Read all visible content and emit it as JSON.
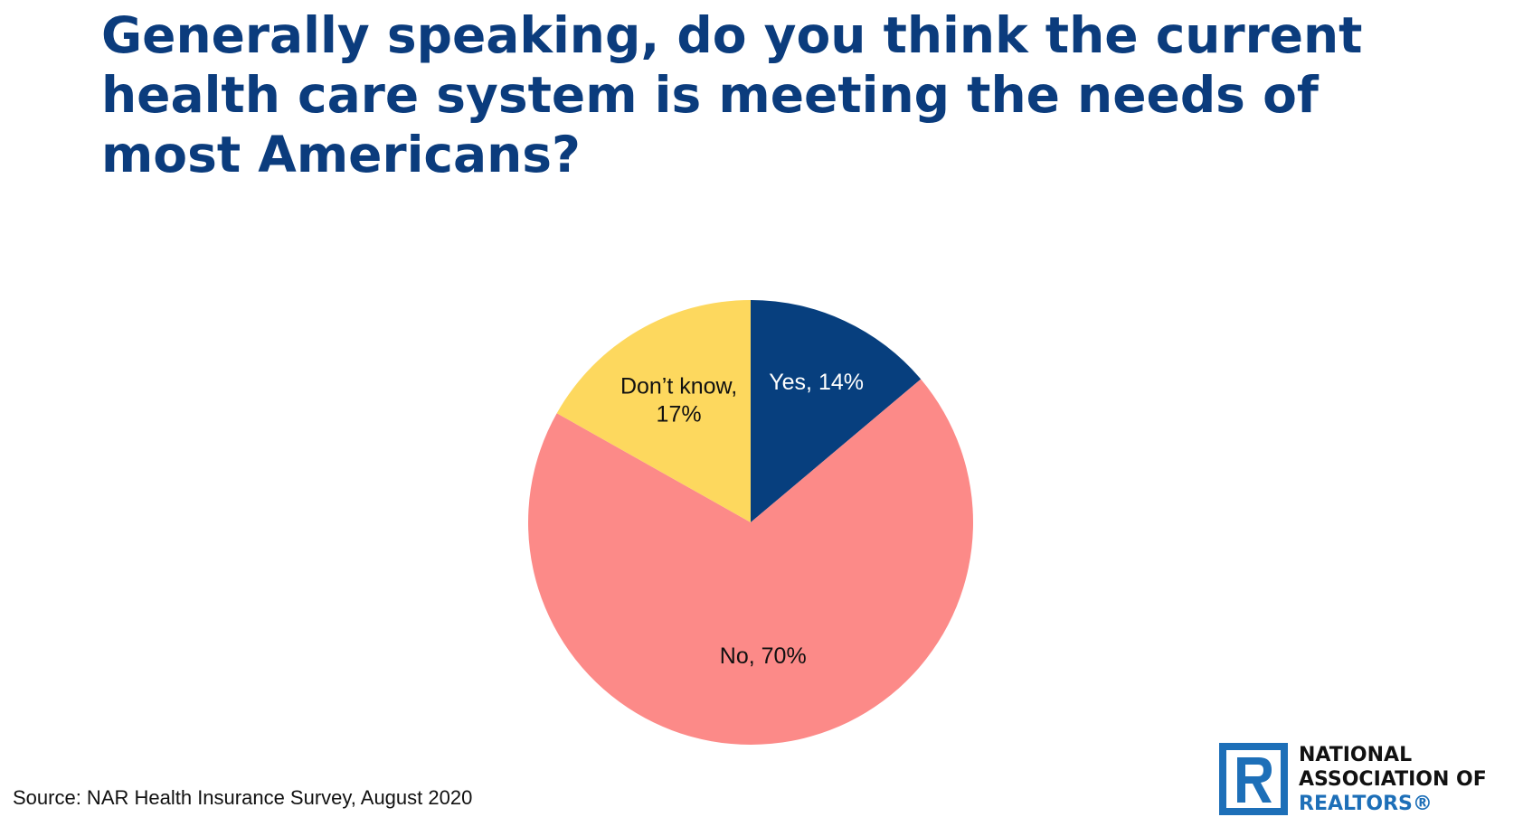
{
  "title": "Generally speaking, do you think the current health care system is meeting the needs of most Americans?",
  "source": "Source: NAR Health Insurance Survey, August 2020",
  "logo": {
    "line1": "NATIONAL",
    "line2": "ASSOCIATION OF",
    "line3": "REALTORS®"
  },
  "colors": {
    "title": "#0b3c7d",
    "yes": "#073f7e",
    "no": "#fc8a88",
    "dont_know": "#fdd85e",
    "logo_blue": "#1d6fb8"
  },
  "chart_data": {
    "type": "pie",
    "title": "Generally speaking, do you think the current health care system is meeting the needs of most Americans?",
    "slices": [
      {
        "name": "Yes",
        "value": 14,
        "label": "Yes, 14%",
        "color": "#073f7e",
        "label_color": "#ffffff"
      },
      {
        "name": "No",
        "value": 70,
        "label": "No, 70%",
        "color": "#fc8a88",
        "label_color": "#111111"
      },
      {
        "name": "Don’t know",
        "value": 17,
        "label": "Don’t know,\n17%",
        "color": "#fdd85e",
        "label_color": "#111111"
      }
    ],
    "start_angle": "12 o'clock",
    "direction": "clockwise",
    "legend": "none"
  }
}
